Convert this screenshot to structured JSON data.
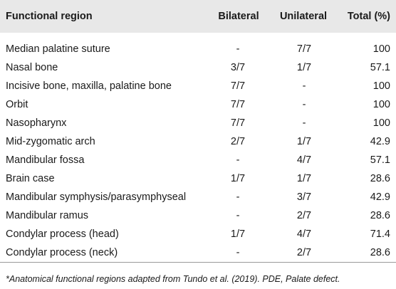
{
  "table": {
    "headers": {
      "region": "Functional region",
      "bilateral": "Bilateral",
      "unilateral": "Unilateral",
      "total": "Total (%)"
    },
    "rows": [
      {
        "region": "Median palatine suture",
        "bilateral": "-",
        "unilateral": "7/7",
        "total": "100"
      },
      {
        "region": "Nasal bone",
        "bilateral": "3/7",
        "unilateral": "1/7",
        "total": "57.1"
      },
      {
        "region": "Incisive bone, maxilla, palatine bone",
        "bilateral": "7/7",
        "unilateral": "-",
        "total": "100"
      },
      {
        "region": "Orbit",
        "bilateral": "7/7",
        "unilateral": "-",
        "total": "100"
      },
      {
        "region": "Nasopharynx",
        "bilateral": "7/7",
        "unilateral": "-",
        "total": "100"
      },
      {
        "region": "Mid-zygomatic arch",
        "bilateral": "2/7",
        "unilateral": "1/7",
        "total": "42.9"
      },
      {
        "region": "Mandibular fossa",
        "bilateral": "-",
        "unilateral": "4/7",
        "total": "57.1"
      },
      {
        "region": "Brain case",
        "bilateral": "1/7",
        "unilateral": "1/7",
        "total": "28.6"
      },
      {
        "region": "Mandibular symphysis/parasymphyseal",
        "bilateral": "-",
        "unilateral": "3/7",
        "total": "42.9"
      },
      {
        "region": "Mandibular ramus",
        "bilateral": "-",
        "unilateral": "2/7",
        "total": "28.6"
      },
      {
        "region": "Condylar process (head)",
        "bilateral": "1/7",
        "unilateral": "4/7",
        "total": "71.4"
      },
      {
        "region": "Condylar process (neck)",
        "bilateral": "-",
        "unilateral": "2/7",
        "total": "28.6"
      }
    ]
  },
  "footnote": "*Anatomical functional regions adapted from Tundo et al. (2019). PDE, Palate defect.",
  "colors": {
    "header_background": "#e8e8e8",
    "divider": "#9a9a9a",
    "text": "#1a1a1a"
  }
}
